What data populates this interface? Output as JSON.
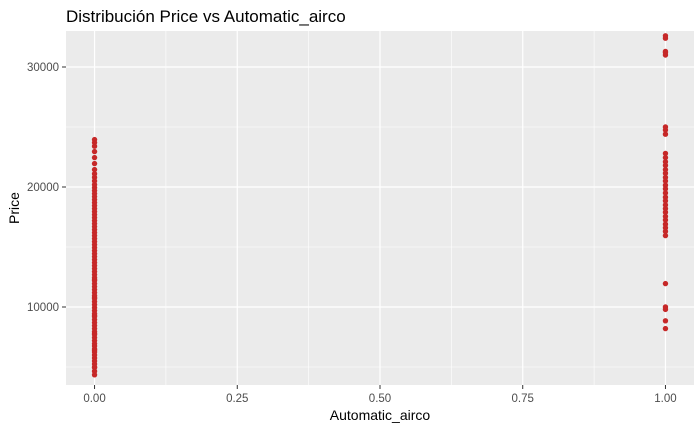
{
  "chart_data": {
    "type": "scatter",
    "title": "Distribución Price vs Automatic_airco",
    "xlabel": "Automatic_airco",
    "ylabel": "Price",
    "xlim": [
      -0.05,
      1.05
    ],
    "ylim": [
      3500,
      33000
    ],
    "x_ticks": [
      0.0,
      0.25,
      0.5,
      0.75,
      1.0
    ],
    "x_tick_labels": [
      "0.00",
      "0.25",
      "0.50",
      "0.75",
      "1.00"
    ],
    "y_ticks": [
      10000,
      20000,
      30000
    ],
    "y_tick_labels": [
      "10000",
      "20000",
      "30000"
    ],
    "grid": true,
    "legend": "none",
    "point_color": "#C62828",
    "panel_color": "#EBEBEB",
    "series": [
      {
        "x": [
          0,
          0,
          0,
          0,
          0,
          0,
          0,
          0,
          0,
          0,
          0,
          0,
          0,
          0,
          0,
          0,
          0,
          0,
          0,
          0,
          0,
          0,
          0,
          0,
          0,
          0,
          0,
          0,
          0,
          0,
          0,
          0,
          0,
          0,
          0,
          0,
          0,
          0,
          0,
          0,
          0,
          0,
          0,
          0,
          0,
          0,
          0,
          0,
          0,
          0,
          0,
          0,
          0,
          0,
          0,
          0,
          0,
          0,
          0,
          0,
          0,
          0,
          0,
          0,
          0,
          0,
          0,
          0,
          0,
          0,
          0,
          0,
          0,
          0,
          0,
          0,
          0,
          0,
          0,
          0
        ],
        "y": [
          4350,
          4650,
          4950,
          5250,
          5500,
          5750,
          6000,
          6250,
          6500,
          6750,
          6950,
          7200,
          7450,
          7700,
          7950,
          8200,
          8450,
          8700,
          8950,
          9200,
          9450,
          9700,
          9950,
          10200,
          10450,
          10700,
          10950,
          11200,
          11450,
          11700,
          11950,
          12200,
          12450,
          12700,
          12950,
          13200,
          13450,
          13700,
          13950,
          14200,
          14450,
          14700,
          14950,
          15200,
          15450,
          15700,
          15950,
          16200,
          16450,
          16700,
          16950,
          17200,
          17450,
          17700,
          17950,
          18200,
          18450,
          18700,
          18950,
          19200,
          19450,
          19700,
          19950,
          20200,
          20500,
          20800,
          21100,
          21450,
          21950,
          22450,
          22950,
          23400,
          23700,
          23950,
          5000,
          6400,
          7800,
          9300,
          10800,
          12300
        ],
        "points_note": ""
      },
      {
        "x": [
          1,
          1,
          1,
          1,
          1,
          1,
          1,
          1,
          1,
          1,
          1,
          1,
          1,
          1,
          1,
          1,
          1,
          1,
          1,
          1,
          1,
          1,
          1,
          1,
          1,
          1,
          1,
          1,
          1,
          1,
          1,
          1,
          1,
          1,
          1
        ],
        "y": [
          8200,
          8850,
          9800,
          10000,
          11950,
          15950,
          16300,
          16600,
          16900,
          17250,
          17550,
          17900,
          18200,
          18500,
          18850,
          19150,
          19500,
          19850,
          20150,
          20500,
          20800,
          21150,
          21450,
          21800,
          22100,
          22450,
          22800,
          24400,
          24750,
          25000,
          31000,
          31200,
          31300,
          32400,
          32600
        ]
      }
    ]
  }
}
